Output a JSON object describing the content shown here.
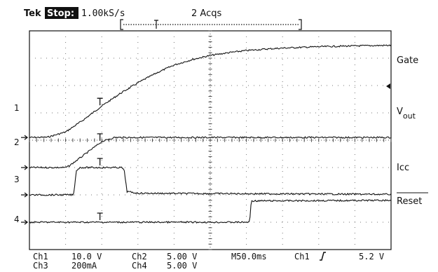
{
  "header": {
    "brand": "Tek",
    "run_state": "Stop:",
    "sample_rate": "1.00kS/s",
    "acquisitions": "2 Acqs"
  },
  "trace_labels": {
    "gate": "Gate",
    "vout_main": "V",
    "vout_sub": "out",
    "icc": "Icc",
    "reset": "Reset"
  },
  "channel_markers": [
    "1",
    "2",
    "3",
    "4"
  ],
  "footer": {
    "row1": {
      "ch_a": "Ch1",
      "ch_a_scale": "10.0 V",
      "ch_b": "Ch2",
      "ch_b_scale": "5.00 V",
      "timebase": "M50.0ms",
      "trigger_src": "Ch1",
      "trigger_level": "5.2 V"
    },
    "row2": {
      "ch_a": "Ch3",
      "ch_a_scale": "200mA",
      "ch_b": "Ch4",
      "ch_b_scale": "5.00 V"
    }
  },
  "chart_data": {
    "type": "line",
    "x_divisions": 10,
    "y_divisions": 8,
    "grid": true,
    "timebase_per_div": "50.0ms",
    "x_unit": "divisions",
    "series": [
      {
        "name": "Gate",
        "channel": "Ch2",
        "x": [
          0,
          0.5,
          1.0,
          1.5,
          2.0,
          2.5,
          3.0,
          3.5,
          4.0,
          4.5,
          5.0,
          5.5,
          6.0,
          6.5,
          7.0,
          8.0,
          9.0,
          10.0
        ],
        "y": [
          4.1,
          4.11,
          4.3,
          4.75,
          5.25,
          5.7,
          6.1,
          6.45,
          6.75,
          6.95,
          7.1,
          7.2,
          7.28,
          7.33,
          7.37,
          7.42,
          7.45,
          7.47
        ]
      },
      {
        "name": "Vout",
        "channel": "Ch1",
        "x": [
          0,
          1.0,
          1.1,
          1.5,
          2.0,
          2.35,
          3.0,
          10.0
        ],
        "y": [
          3.0,
          3.0,
          3.06,
          3.45,
          3.95,
          4.1,
          4.1,
          4.1
        ]
      },
      {
        "name": "Icc",
        "channel": "Ch3",
        "x": [
          0,
          1.22,
          1.3,
          1.4,
          2.55,
          2.62,
          2.7,
          3.0,
          10.0
        ],
        "y": [
          2.0,
          2.0,
          2.9,
          3.0,
          3.0,
          2.9,
          2.12,
          2.06,
          2.02
        ]
      },
      {
        "name": "Reset",
        "channel": "Ch4",
        "x": [
          0,
          6.09,
          6.12,
          6.15,
          10.0
        ],
        "y": [
          1.0,
          1.0,
          1.6,
          1.78,
          1.8
        ]
      }
    ]
  }
}
